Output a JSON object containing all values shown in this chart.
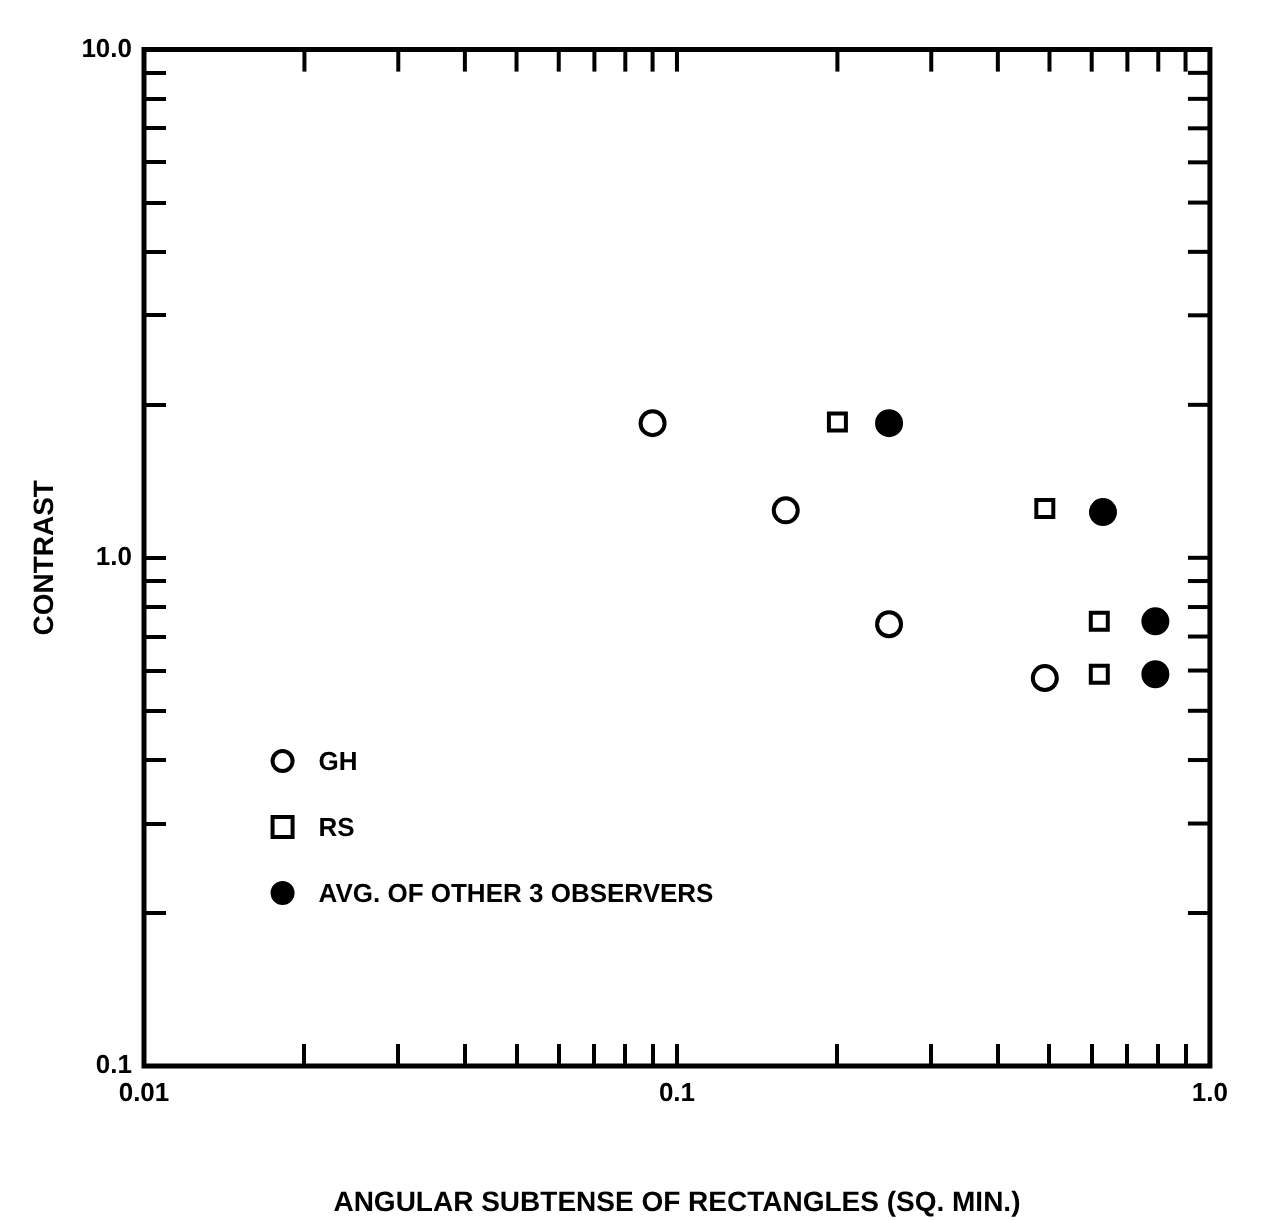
{
  "chart_data": {
    "type": "scatter",
    "xlabel": "ANGULAR SUBTENSE OF RECTANGLES (SQ. MIN.)",
    "ylabel": "CONTRAST",
    "log": "xy",
    "grid": false,
    "legend": "left",
    "xlim": [
      0.01,
      1
    ],
    "ylim": [
      0.1,
      10
    ],
    "xticks": [
      {
        "value": 0.01,
        "label": "0.01"
      },
      {
        "value": 0.02,
        "label": null
      },
      {
        "value": 0.03,
        "label": null
      },
      {
        "value": 0.04,
        "label": null
      },
      {
        "value": 0.05,
        "label": null
      },
      {
        "value": 0.06,
        "label": null
      },
      {
        "value": 0.07,
        "label": null
      },
      {
        "value": 0.08,
        "label": null
      },
      {
        "value": 0.09,
        "label": null
      },
      0.1,
      {
        "value": 0.2,
        "label": null
      },
      {
        "value": 0.3,
        "label": null
      },
      {
        "value": 0.4,
        "label": null
      },
      {
        "value": 0.5,
        "label": null
      },
      {
        "value": 0.6,
        "label": null
      },
      {
        "value": 0.7,
        "label": null
      },
      {
        "value": 0.8,
        "label": null
      },
      {
        "value": 0.9,
        "label": null
      },
      {
        "value": 1,
        "label": "1.0"
      }
    ],
    "yticks": [
      0.1,
      {
        "value": 0.2,
        "label": null
      },
      {
        "value": 0.3,
        "label": null
      },
      {
        "value": 0.4,
        "label": null
      },
      {
        "value": 0.5,
        "label": null
      },
      {
        "value": 0.6,
        "label": null
      },
      {
        "value": 0.7,
        "label": null
      },
      {
        "value": 0.8,
        "label": null
      },
      {
        "value": 0.9,
        "label": null
      },
      {
        "value": 1,
        "label": "1.0"
      },
      {
        "value": 2,
        "label": null
      },
      {
        "value": 3,
        "label": null
      },
      {
        "value": 4,
        "label": null
      },
      {
        "value": 5,
        "label": null
      },
      {
        "value": 6,
        "label": null
      },
      {
        "value": 7,
        "label": null
      },
      {
        "value": 8,
        "label": null
      },
      {
        "value": 9,
        "label": null
      },
      {
        "value": 10,
        "label": "10.0"
      }
    ],
    "series": [
      {
        "name": "GH",
        "color": "#000000",
        "marker": "circle",
        "x": [
          0.09,
          0.16,
          0.25,
          0.49
        ],
        "values": [
          1.84,
          1.24,
          0.74,
          0.58
        ]
      },
      {
        "name": "RS",
        "color": "#000000",
        "marker": "square",
        "x": [
          0.2,
          0.49,
          0.62,
          0.62
        ],
        "values": [
          1.85,
          1.25,
          0.75,
          0.59
        ]
      },
      {
        "name": "AVG. OF OTHER 3 OBSERVERS",
        "color": "#000000",
        "marker": "circle",
        "x": [
          0.25,
          0.63,
          0.79,
          0.79
        ],
        "values": [
          1.84,
          1.23,
          0.75,
          0.59
        ]
      }
    ]
  }
}
